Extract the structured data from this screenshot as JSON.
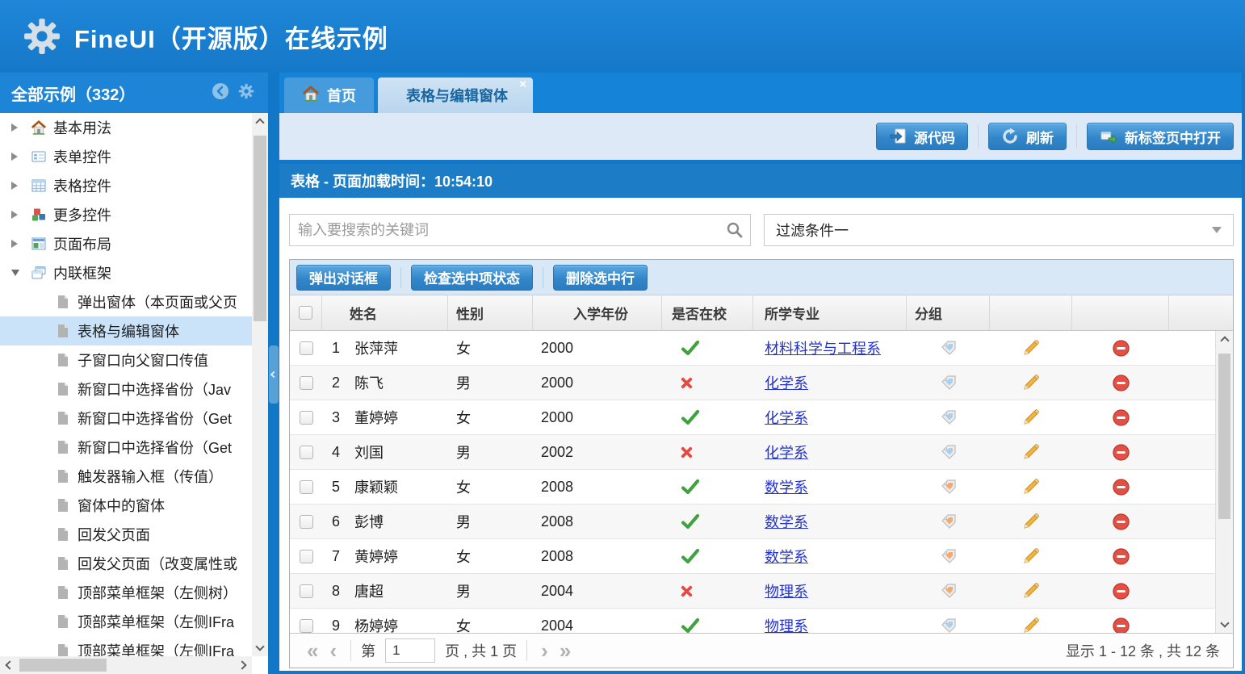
{
  "app": {
    "title": "FineUI（开源版）在线示例"
  },
  "sidebar": {
    "title": "全部示例（332）",
    "tree": [
      {
        "label": "基本用法",
        "icon": "home",
        "level": 0,
        "expanded": false
      },
      {
        "label": "表单控件",
        "icon": "form",
        "level": 0,
        "expanded": false
      },
      {
        "label": "表格控件",
        "icon": "grid",
        "level": 0,
        "expanded": false
      },
      {
        "label": "更多控件",
        "icon": "cubes",
        "level": 0,
        "expanded": false
      },
      {
        "label": "页面布局",
        "icon": "layout",
        "level": 0,
        "expanded": false
      },
      {
        "label": "内联框架",
        "icon": "frames",
        "level": 0,
        "expanded": true
      },
      {
        "label": "弹出窗体（本页面或父页",
        "icon": "file",
        "level": 1
      },
      {
        "label": "表格与编辑窗体",
        "icon": "file",
        "level": 1,
        "selected": true
      },
      {
        "label": "子窗口向父窗口传值",
        "icon": "file",
        "level": 1
      },
      {
        "label": "新窗口中选择省份（Jav",
        "icon": "file",
        "level": 1
      },
      {
        "label": "新窗口中选择省份（Get",
        "icon": "file",
        "level": 1
      },
      {
        "label": "新窗口中选择省份（Get",
        "icon": "file",
        "level": 1
      },
      {
        "label": "触发器输入框（传值）",
        "icon": "file",
        "level": 1
      },
      {
        "label": "窗体中的窗体",
        "icon": "file",
        "level": 1
      },
      {
        "label": "回发父页面",
        "icon": "file",
        "level": 1
      },
      {
        "label": "回发父页面（改变属性或",
        "icon": "file",
        "level": 1
      },
      {
        "label": "顶部菜单框架（左侧树）",
        "icon": "file",
        "level": 1
      },
      {
        "label": "顶部菜单框架（左侧IFra",
        "icon": "file",
        "level": 1
      },
      {
        "label": "顶部菜单框架（左侧IFra",
        "icon": "file",
        "level": 1
      }
    ]
  },
  "tabs": [
    {
      "label": "首页",
      "icon": "home",
      "active": false
    },
    {
      "label": "表格与编辑窗体",
      "active": true,
      "close_glyph": "×"
    }
  ],
  "toolbar": {
    "buttons": [
      {
        "label": "源代码",
        "icon": "source"
      },
      {
        "label": "刷新",
        "icon": "refresh"
      },
      {
        "label": "新标签页中打开",
        "icon": "open-new"
      }
    ]
  },
  "panel": {
    "title": "表格 - 页面加载时间：10:54:10"
  },
  "search": {
    "placeholder": "输入要搜索的关键词"
  },
  "filter": {
    "value": "过滤条件一"
  },
  "grid": {
    "buttons": [
      "弹出对话框",
      "检查选中项状态",
      "删除选中行"
    ],
    "columns": [
      "姓名",
      "性别",
      "入学年份",
      "是否在校",
      "所学专业",
      "分组"
    ],
    "rows": [
      {
        "num": "1",
        "name": "张萍萍",
        "gender": "女",
        "year": "2000",
        "at_school": "check",
        "major": "材料科学与工程系",
        "tag_color": "blue"
      },
      {
        "num": "2",
        "name": "陈飞",
        "gender": "男",
        "year": "2000",
        "at_school": "cross",
        "major": "化学系",
        "tag_color": "blue"
      },
      {
        "num": "3",
        "name": "董婷婷",
        "gender": "女",
        "year": "2000",
        "at_school": "check",
        "major": "化学系",
        "tag_color": "blue"
      },
      {
        "num": "4",
        "name": "刘国",
        "gender": "男",
        "year": "2002",
        "at_school": "cross",
        "major": "化学系",
        "tag_color": "blue"
      },
      {
        "num": "5",
        "name": "康颖颖",
        "gender": "女",
        "year": "2008",
        "at_school": "check",
        "major": "数学系",
        "tag_color": "orange"
      },
      {
        "num": "6",
        "name": "彭博",
        "gender": "男",
        "year": "2008",
        "at_school": "check",
        "major": "数学系",
        "tag_color": "orange"
      },
      {
        "num": "7",
        "name": "黄婷婷",
        "gender": "女",
        "year": "2008",
        "at_school": "check",
        "major": "数学系",
        "tag_color": "orange"
      },
      {
        "num": "8",
        "name": "唐超",
        "gender": "男",
        "year": "2004",
        "at_school": "cross",
        "major": "物理系",
        "tag_color": "orange"
      },
      {
        "num": "9",
        "name": "杨婷婷",
        "gender": "女",
        "year": "2004",
        "at_school": "check",
        "major": "物理系",
        "tag_color": "blue"
      }
    ],
    "pagination": {
      "first_glyph": "«",
      "prev_glyph": "‹",
      "next_glyph": "›",
      "last_glyph": "»",
      "page_label": "第",
      "page_value": "1",
      "total_label": "页 , 共 1 页",
      "summary": "显示 1 - 12 条 , 共 12 条"
    }
  },
  "colors": {
    "accent_blue": "#1377c8",
    "header_blue": "#1b7fd1",
    "link_blue": "#2333cc",
    "check_green": "#3fa23f",
    "cross_red": "#e04b45",
    "tag_blue": "#a6d1f2",
    "tag_orange": "#f6a96d"
  }
}
